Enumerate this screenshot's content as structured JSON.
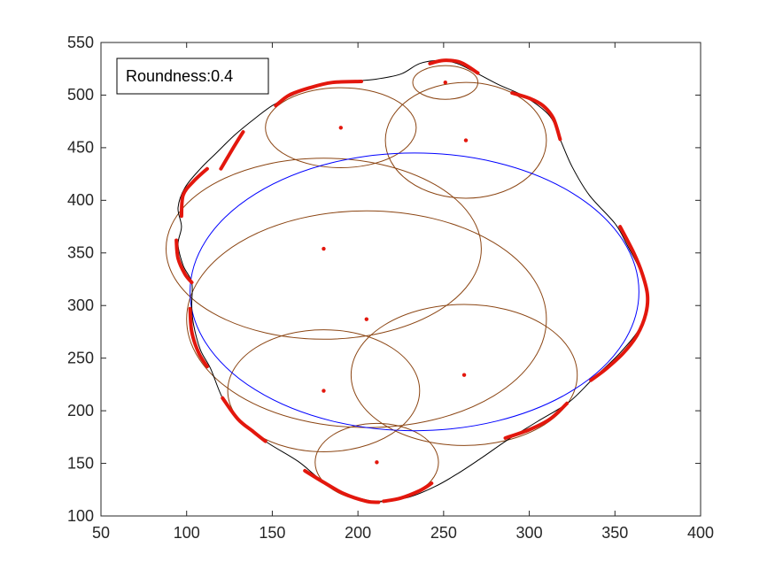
{
  "chart_data": {
    "type": "scatter",
    "title": "",
    "xlabel": "",
    "ylabel": "",
    "xlim": [
      50,
      400
    ],
    "ylim": [
      100,
      550
    ],
    "xticks": [
      50,
      100,
      150,
      200,
      250,
      300,
      350,
      400
    ],
    "yticks": [
      100,
      150,
      200,
      250,
      300,
      350,
      400,
      450,
      500,
      550
    ],
    "grid": false,
    "annotation": {
      "text": "Roundness:0.4",
      "placement": "top-left"
    },
    "colors": {
      "outline": "#000000",
      "highlight": "#e3170d",
      "circles": "#8b4513",
      "ellipse": "#0000ff",
      "centers": "#e3170d",
      "axes": "#262626"
    },
    "outline": [
      [
        211,
        113
      ],
      [
        230,
        118
      ],
      [
        245,
        128
      ],
      [
        258,
        140
      ],
      [
        272,
        155
      ],
      [
        288,
        173
      ],
      [
        305,
        190
      ],
      [
        323,
        208
      ],
      [
        337,
        230
      ],
      [
        353,
        255
      ],
      [
        365,
        280
      ],
      [
        369,
        305
      ],
      [
        365,
        332
      ],
      [
        357,
        358
      ],
      [
        350,
        378
      ],
      [
        335,
        405
      ],
      [
        325,
        432
      ],
      [
        318,
        458
      ],
      [
        312,
        480
      ],
      [
        298,
        498
      ],
      [
        282,
        510
      ],
      [
        268,
        522
      ],
      [
        258,
        530
      ],
      [
        248,
        533
      ],
      [
        236,
        530
      ],
      [
        225,
        520
      ],
      [
        210,
        515
      ],
      [
        195,
        513
      ],
      [
        178,
        510
      ],
      [
        162,
        500
      ],
      [
        150,
        490
      ],
      [
        140,
        478
      ],
      [
        128,
        462
      ],
      [
        118,
        446
      ],
      [
        108,
        430
      ],
      [
        99,
        412
      ],
      [
        95,
        393
      ],
      [
        97,
        375
      ],
      [
        95,
        358
      ],
      [
        98,
        338
      ],
      [
        103,
        322
      ],
      [
        103,
        300
      ],
      [
        104,
        282
      ],
      [
        108,
        258
      ],
      [
        114,
        240
      ],
      [
        121,
        212
      ],
      [
        130,
        192
      ],
      [
        146,
        171
      ],
      [
        165,
        152
      ],
      [
        178,
        135
      ],
      [
        195,
        120
      ],
      [
        211,
        113
      ]
    ],
    "highlight_segments": [
      [
        [
          169,
          143
        ],
        [
          180,
          132
        ],
        [
          192,
          121
        ],
        [
          205,
          114
        ],
        [
          212,
          113
        ]
      ],
      [
        [
          215,
          114
        ],
        [
          225,
          117
        ],
        [
          236,
          124
        ],
        [
          243,
          131
        ]
      ],
      [
        [
          286,
          174
        ],
        [
          300,
          182
        ],
        [
          312,
          192
        ],
        [
          322,
          207
        ]
      ],
      [
        [
          336,
          229
        ],
        [
          345,
          240
        ],
        [
          355,
          255
        ],
        [
          363,
          272
        ],
        [
          368,
          292
        ],
        [
          369,
          310
        ],
        [
          366,
          330
        ],
        [
          361,
          350
        ],
        [
          353,
          375
        ]
      ],
      [
        [
          290,
          502
        ],
        [
          300,
          497
        ],
        [
          308,
          490
        ],
        [
          314,
          478
        ],
        [
          318,
          458
        ]
      ],
      [
        [
          242,
          530
        ],
        [
          250,
          533
        ],
        [
          260,
          531
        ],
        [
          270,
          521
        ]
      ],
      [
        [
          152,
          490
        ],
        [
          160,
          500
        ],
        [
          172,
          507
        ],
        [
          185,
          512
        ],
        [
          202,
          513
        ]
      ],
      [
        [
          120,
          430
        ],
        [
          128,
          452
        ],
        [
          133,
          465
        ]
      ],
      [
        [
          97,
          385
        ],
        [
          98,
          405
        ],
        [
          104,
          418
        ],
        [
          112,
          430
        ]
      ],
      [
        [
          94,
          362
        ],
        [
          95,
          345
        ],
        [
          99,
          330
        ],
        [
          103,
          322
        ]
      ],
      [
        [
          102,
          297
        ],
        [
          103,
          275
        ],
        [
          107,
          255
        ],
        [
          112,
          242
        ]
      ],
      [
        [
          121,
          212
        ],
        [
          130,
          192
        ],
        [
          139,
          180
        ],
        [
          146,
          171
        ]
      ]
    ],
    "circles": [
      {
        "cx": 205,
        "cy": 287,
        "rx": 105,
        "ry": 103
      },
      {
        "cx": 180,
        "cy": 354,
        "rx": 92,
        "ry": 86
      },
      {
        "cx": 262,
        "cy": 234,
        "rx": 66,
        "ry": 67
      },
      {
        "cx": 180,
        "cy": 219,
        "rx": 56,
        "ry": 58
      },
      {
        "cx": 211,
        "cy": 151,
        "rx": 36,
        "ry": 37
      },
      {
        "cx": 190,
        "cy": 469,
        "rx": 44,
        "ry": 38
      },
      {
        "cx": 263,
        "cy": 457,
        "rx": 47,
        "ry": 55
      },
      {
        "cx": 251,
        "cy": 512,
        "rx": 19,
        "ry": 16
      }
    ],
    "ellipse": {
      "cx": 233,
      "cy": 313,
      "rx": 131,
      "ry": 132
    },
    "centers": [
      [
        205,
        287
      ],
      [
        180,
        354
      ],
      [
        262,
        234
      ],
      [
        180,
        219
      ],
      [
        211,
        151
      ],
      [
        190,
        469
      ],
      [
        263,
        457
      ],
      [
        251,
        512
      ]
    ]
  }
}
